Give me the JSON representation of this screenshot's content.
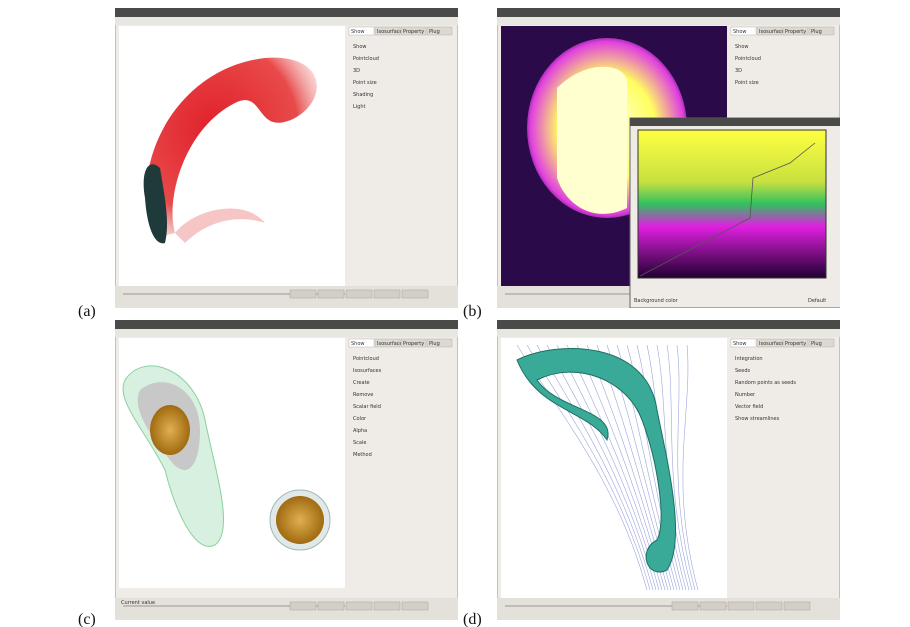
{
  "panels": [
    {
      "label": "(a)",
      "tabs": [
        "Show",
        "Isosurface",
        "Property",
        "Plug"
      ],
      "items": [
        "Show",
        "Pointcloud",
        "3D",
        "Point size",
        "Shading",
        "Light"
      ]
    },
    {
      "label": "(b)",
      "tabs": [
        "Show",
        "Isosurface",
        "Property",
        "Plug"
      ],
      "items": [
        "Show",
        "Pointcloud",
        "3D",
        "Point size"
      ],
      "dialog": {
        "items": [
          "Background color",
          "Default"
        ]
      }
    },
    {
      "label": "(c)",
      "tabs": [
        "Show",
        "Isosurface",
        "Property",
        "Plug"
      ],
      "items": [
        "Pointcloud",
        "Isosurfaces",
        "Create",
        "Remove",
        "Scalar field",
        "Color",
        "Alpha",
        "Scale",
        "Method"
      ],
      "footer": "Current value"
    },
    {
      "label": "(d)",
      "tabs": [
        "Show",
        "Isosurface",
        "Property",
        "Plug"
      ],
      "items": [
        "Integration",
        "Seeds",
        "Random points as seeds",
        "Number",
        "Vector field",
        "Show streamlines"
      ]
    }
  ]
}
